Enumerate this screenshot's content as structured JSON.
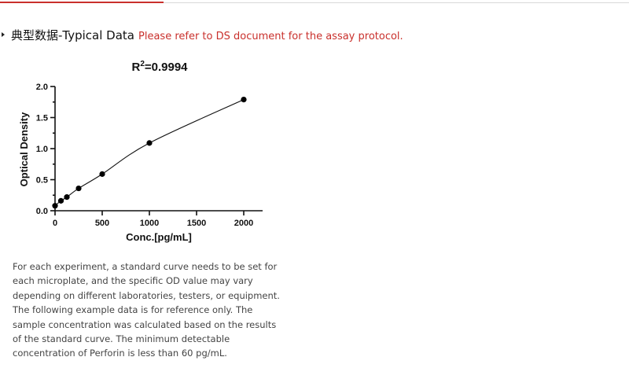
{
  "header": {
    "title": "典型数据-Typical Data",
    "note": "Please refer to DS document for the assay protocol.",
    "note_color": "#c9302c",
    "accent_color": "#c9302c",
    "bullet_icon": "caret-right-icon"
  },
  "chart_data": {
    "type": "scatter",
    "annotation": "R²=0.9994",
    "xlabel": "Conc.[pg/mL]",
    "ylabel": "Optical Density",
    "xlim": [
      0,
      2200
    ],
    "ylim": [
      0,
      2.0
    ],
    "x_ticks": [
      "0",
      "500",
      "1000",
      "1500",
      "2000"
    ],
    "y_ticks": [
      "0.0",
      "0.5",
      "1.0",
      "1.5",
      "2.0"
    ],
    "grid": false,
    "fit_line": true,
    "series": [
      {
        "x": [
          0,
          62.5,
          125,
          250,
          500,
          1000,
          2000
        ],
        "y": [
          0.08,
          0.16,
          0.22,
          0.36,
          0.59,
          1.09,
          1.79
        ]
      }
    ]
  },
  "description": "For each experiment, a standard curve needs to be set for each microplate, and the specific OD value may vary depending on different laboratories, testers, or equipment. The following example data is for reference only. The sample concentration was calculated based on the results of the standard curve. The minimum detectable concentration of Perforin is less than 60 pg/mL."
}
